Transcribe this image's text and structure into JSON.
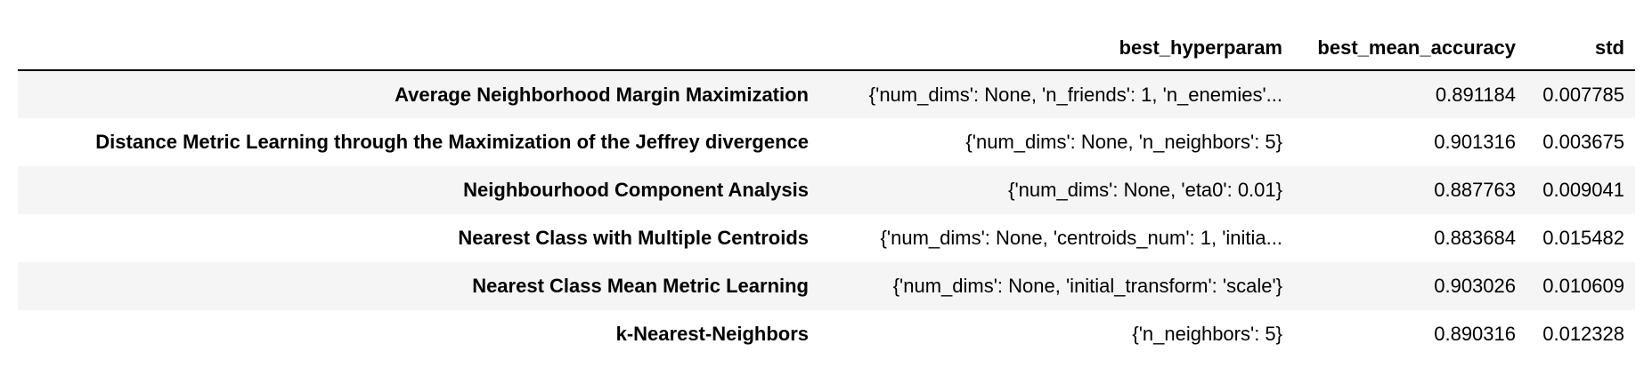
{
  "table": {
    "columns": {
      "index": "",
      "hyperparam": "best_hyperparam",
      "accuracy": "best_mean_accuracy",
      "std": "std"
    },
    "rows": [
      {
        "name": "Average Neighborhood Margin Maximization",
        "hyperparam": "{'num_dims': None, 'n_friends': 1, 'n_enemies'...",
        "accuracy": "0.891184",
        "std": "0.007785"
      },
      {
        "name": "Distance Metric Learning through the Maximization of the Jeffrey divergence",
        "hyperparam": "{'num_dims': None, 'n_neighbors': 5}",
        "accuracy": "0.901316",
        "std": "0.003675"
      },
      {
        "name": "Neighbourhood Component Analysis",
        "hyperparam": "{'num_dims': None, 'eta0': 0.01}",
        "accuracy": "0.887763",
        "std": "0.009041"
      },
      {
        "name": "Nearest Class with Multiple Centroids",
        "hyperparam": "{'num_dims': None, 'centroids_num': 1, 'initia...",
        "accuracy": "0.883684",
        "std": "0.015482"
      },
      {
        "name": "Nearest Class Mean Metric Learning",
        "hyperparam": "{'num_dims': None, 'initial_transform': 'scale'}",
        "accuracy": "0.903026",
        "std": "0.010609"
      },
      {
        "name": "k-Nearest-Neighbors",
        "hyperparam": "{'n_neighbors': 5}",
        "accuracy": "0.890316",
        "std": "0.012328"
      }
    ]
  }
}
